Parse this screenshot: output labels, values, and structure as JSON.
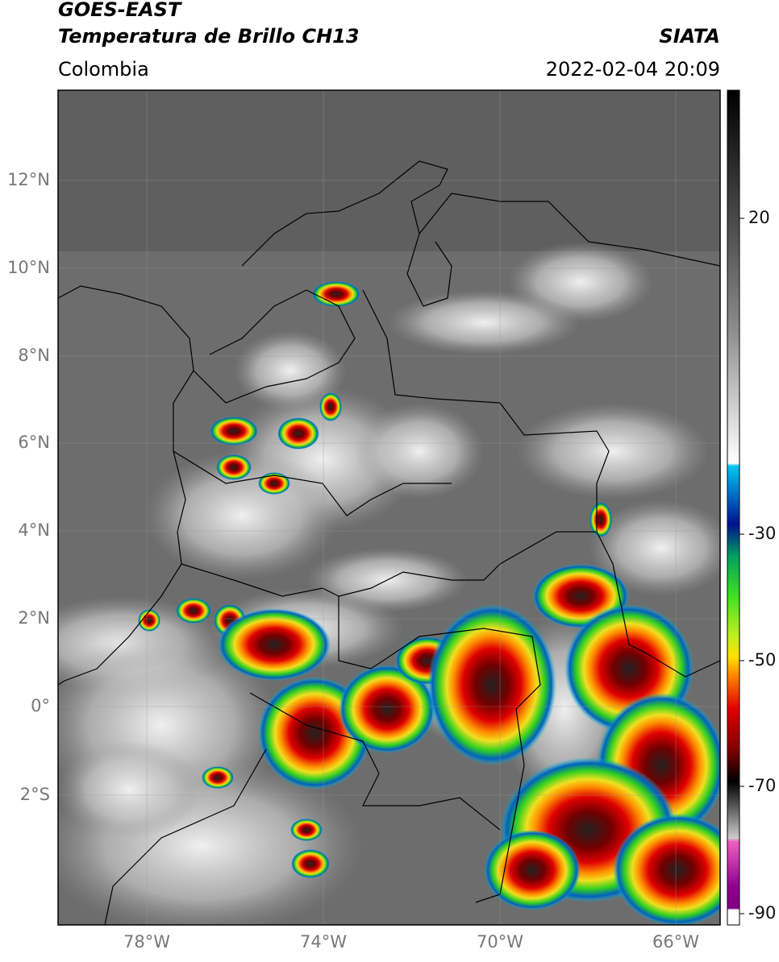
{
  "header": {
    "title": "GOES-EAST",
    "subtitle": "Temperatura de Brillo CH13",
    "source": "SIATA",
    "region": "Colombia",
    "datetime": "2022-02-04 20:09"
  },
  "map": {
    "lat_labels": [
      "12°N",
      "10°N",
      "8°N",
      "6°N",
      "4°N",
      "2°N",
      "0°",
      "2°S"
    ],
    "lon_labels": [
      "78°W",
      "74°W",
      "70°W",
      "66°W"
    ]
  },
  "colorbar": {
    "ticks": [
      20,
      -30,
      -50,
      -70,
      -90
    ]
  }
}
